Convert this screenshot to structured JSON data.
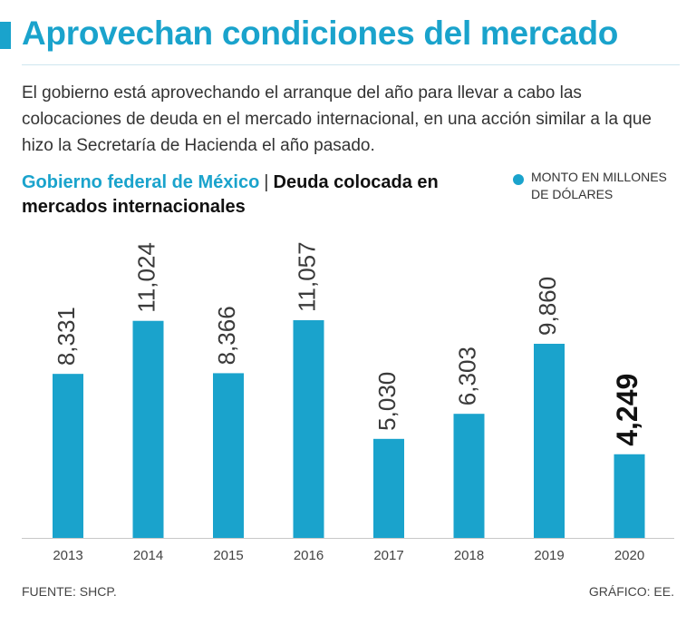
{
  "header": {
    "title": "Aprovechan condiciones del mercado",
    "subtitle": "El gobierno está aprovechando el arranque del año para llevar a cabo las colocaciones de deuda en el mercado internacional, en una acción similar a la que hizo la Secretaría de Hacienda el año pasado."
  },
  "chart_heading": {
    "lead": "Gobierno federal de México",
    "separator": "|",
    "rest": "Deuda colocada en mercados internacionales"
  },
  "legend": {
    "label": "Monto en millones de dólares",
    "color": "#1aa3cc"
  },
  "colors": {
    "accent": "#1aa3cc",
    "bar": "#1aa3cc",
    "highlight_text": "#111111"
  },
  "chart_data": {
    "type": "bar",
    "title": "Deuda colocada en mercados internacionales",
    "categories": [
      "2013",
      "2014",
      "2015",
      "2016",
      "2017",
      "2018",
      "2019",
      "2020"
    ],
    "values": [
      8331,
      11024,
      8366,
      11057,
      5030,
      6303,
      9860,
      4249
    ],
    "value_labels": [
      "8,331",
      "11,024",
      "8,366",
      "11,057",
      "5,030",
      "6,303",
      "9,860",
      "4,249"
    ],
    "highlight_index": 7,
    "ylim": [
      0,
      11057
    ],
    "grid": false,
    "legend_position": "top-right"
  },
  "footer": {
    "source": "FUENTE: SHCP.",
    "credit": "GRÁFICO: EE."
  }
}
